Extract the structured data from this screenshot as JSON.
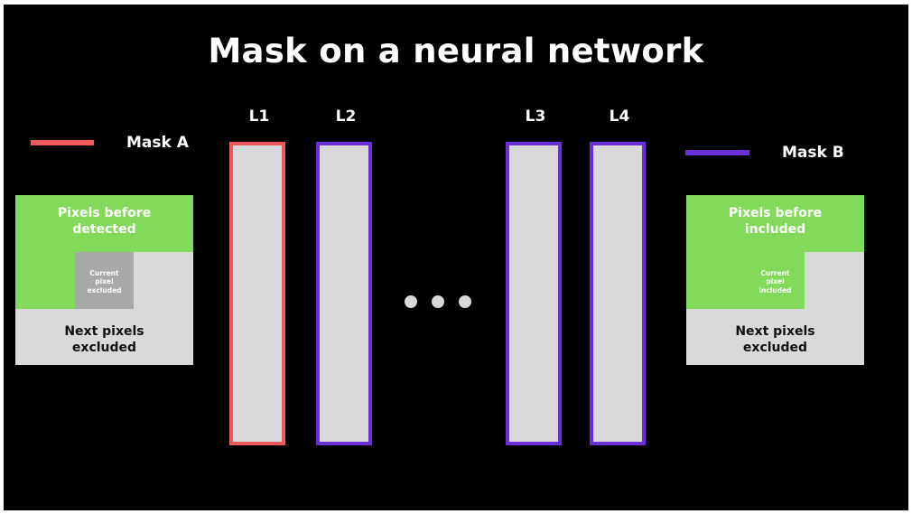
{
  "title": "Mask on a neural network",
  "colors": {
    "background": "#000000",
    "mask_a": "#f05a5a",
    "mask_b": "#6a2fd6",
    "green": "#82da5a",
    "light_gray": "#d9d8da",
    "mid_gray": "#a8a8a8"
  },
  "legend": {
    "mask_a": "Mask A",
    "mask_b": "Mask B"
  },
  "layers": [
    {
      "label": "L1",
      "mask": "Mask A"
    },
    {
      "label": "L2",
      "mask": "Mask B"
    },
    {
      "label": "L3",
      "mask": "Mask B"
    },
    {
      "label": "L4",
      "mask": "Mask B"
    }
  ],
  "ellipsis_dots": 3,
  "mask_a_grid": {
    "top_text": "Pixels before detected",
    "center_text": "Current pixel excluded",
    "bottom_text": "Next pixels excluded"
  },
  "mask_b_grid": {
    "top_text": "Pixels before included",
    "center_text": "Current pixel included",
    "bottom_text": "Next pixels excluded"
  }
}
